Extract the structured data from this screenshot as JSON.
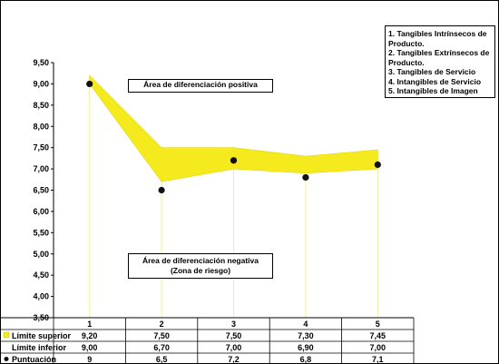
{
  "chart_data": {
    "type": "area",
    "categories": [
      "1",
      "2",
      "3",
      "4",
      "5"
    ],
    "series": [
      {
        "name": "Límite superior",
        "values": [
          9.2,
          7.5,
          7.5,
          7.3,
          7.45
        ],
        "labels": [
          "9,20",
          "7,50",
          "7,50",
          "7,30",
          "7,45"
        ]
      },
      {
        "name": "Límite inferior",
        "values": [
          9.0,
          6.7,
          7.0,
          6.9,
          7.0
        ],
        "labels": [
          "9,00",
          "6,70",
          "7,00",
          "6,90",
          "7,00"
        ]
      },
      {
        "name": "Puntuación",
        "values": [
          9,
          6.5,
          7.2,
          6.8,
          7.1
        ],
        "labels": [
          "9",
          "6,5",
          "7,2",
          "6,8",
          "7,1"
        ]
      }
    ],
    "ylim": [
      3.5,
      9.5
    ],
    "yticks": [
      "3,50",
      "4,00",
      "4,50",
      "5,00",
      "5,50",
      "6,00",
      "6,50",
      "7,00",
      "7,50",
      "8,00",
      "8,50",
      "9,00",
      "9,50"
    ],
    "band_color": "#f5ea1e",
    "point_color": "#111111",
    "annotations": [
      {
        "lines": [
          "Área de diferenciación positiva"
        ]
      },
      {
        "lines": [
          "Área de diferenciación negativa",
          "(Zona de riesgo)"
        ]
      }
    ],
    "legend_box": [
      "1. Tangibles Intrínsecos de",
      "Producto.",
      "2. Tangibles Extrínsecos de",
      "Producto.",
      "3. Tangibles de Servicio",
      "4. Intangibles de Servicio",
      "5. Intangibles de Imagen"
    ],
    "grid": false
  }
}
